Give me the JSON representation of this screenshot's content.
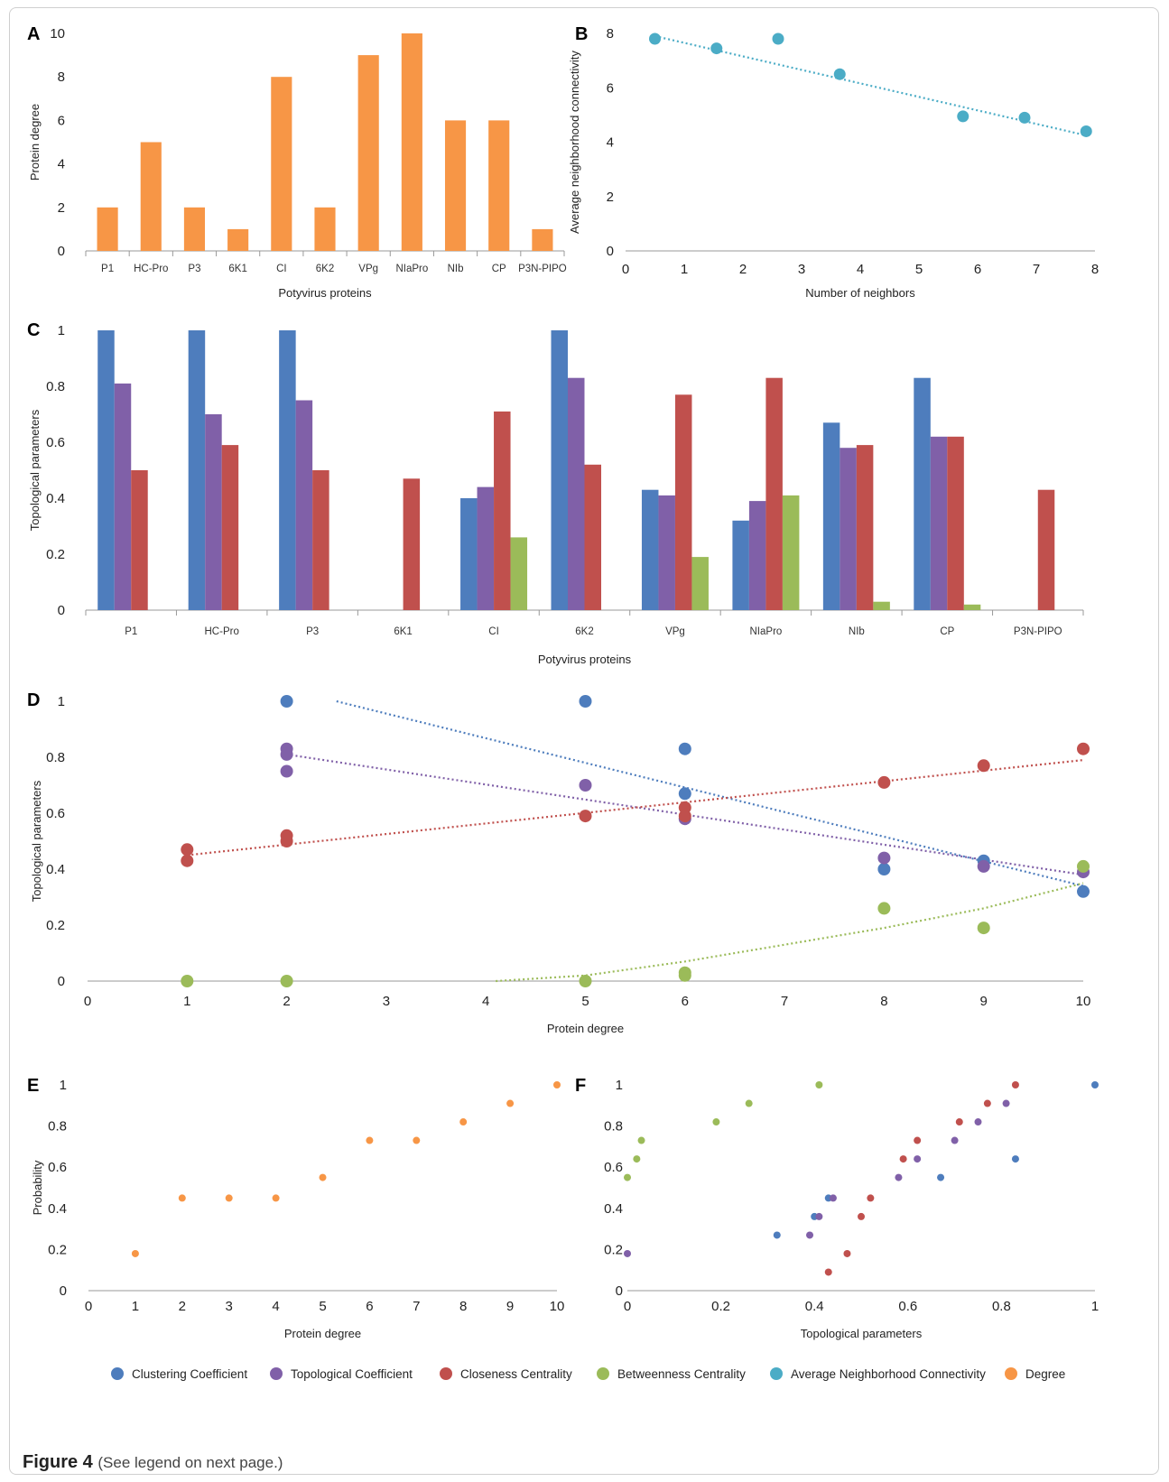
{
  "figure": {
    "caption_label": "Figure 4",
    "caption_text": "(See legend on next page.)"
  },
  "legend": {
    "items": [
      {
        "label": "Clustering Coefficient",
        "color": "#4e7dbd"
      },
      {
        "label": "Topological Coefficient",
        "color": "#8060a8"
      },
      {
        "label": "Closeness Centrality",
        "color": "#c0504d"
      },
      {
        "label": "Betweenness Centrality",
        "color": "#9bbb59"
      },
      {
        "label": "Average Neighborhood Connectivity",
        "color": "#4bacc6"
      },
      {
        "label": "Degree",
        "color": "#f79646"
      }
    ]
  },
  "chart_data": [
    {
      "panel": "A",
      "type": "bar",
      "categories": [
        "P1",
        "HC-Pro",
        "P3",
        "6K1",
        "CI",
        "6K2",
        "VPg",
        "NIaPro",
        "NIb",
        "CP",
        "P3N-PIPO"
      ],
      "series": [
        {
          "name": "Degree",
          "values": [
            2,
            5,
            2,
            1,
            8,
            2,
            9,
            10,
            6,
            6,
            1
          ],
          "color": "#f79646"
        }
      ],
      "xlabel": "Potyvirus proteins",
      "ylabel": "Protein degree",
      "ylim": [
        0,
        10
      ],
      "yticks": [
        "0",
        "2",
        "4",
        "6",
        "8",
        "10"
      ]
    },
    {
      "panel": "B",
      "type": "scatter",
      "series": [
        {
          "name": "Average Neighborhood Connectivity",
          "color": "#4bacc6",
          "points": [
            [
              0.5,
              7.8
            ],
            [
              1.55,
              7.45
            ],
            [
              2.6,
              7.8
            ],
            [
              3.65,
              6.5
            ],
            [
              5.75,
              4.95
            ],
            [
              6.8,
              4.9
            ],
            [
              7.85,
              4.4
            ]
          ]
        }
      ],
      "trendline": {
        "type": "linear",
        "from": [
          0.5,
          7.9
        ],
        "to": [
          7.85,
          4.25
        ]
      },
      "xlabel": "Number of neighbors",
      "ylabel": "Average neighborhood connectivity",
      "xlim": [
        0,
        8
      ],
      "ylim": [
        0,
        8
      ],
      "xticks": [
        "0",
        "1",
        "2",
        "3",
        "4",
        "5",
        "6",
        "7",
        "8"
      ],
      "yticks": [
        "0",
        "2",
        "4",
        "6",
        "8"
      ]
    },
    {
      "panel": "C",
      "type": "bar",
      "categories": [
        "P1",
        "HC-Pro",
        "P3",
        "6K1",
        "CI",
        "6K2",
        "VPg",
        "NIaPro",
        "NIb",
        "CP",
        "P3N-PIPO"
      ],
      "series": [
        {
          "name": "Clustering Coefficient",
          "color": "#4e7dbd",
          "values": [
            1,
            1,
            1,
            0,
            0.4,
            1,
            0.43,
            0.32,
            0.67,
            0.83,
            0
          ]
        },
        {
          "name": "Topological Coefficient",
          "color": "#8060a8",
          "values": [
            0.81,
            0.7,
            0.75,
            0,
            0.44,
            0.83,
            0.41,
            0.39,
            0.58,
            0.62,
            0
          ]
        },
        {
          "name": "Closeness Centrality",
          "color": "#c0504d",
          "values": [
            0.5,
            0.59,
            0.5,
            0.47,
            0.71,
            0.52,
            0.77,
            0.83,
            0.59,
            0.62,
            0.43
          ]
        },
        {
          "name": "Betweenness Centrality",
          "color": "#9bbb59",
          "values": [
            0,
            0,
            0,
            0,
            0.26,
            0,
            0.19,
            0.41,
            0.03,
            0.02,
            0
          ]
        }
      ],
      "xlabel": "Potyvirus proteins",
      "ylabel": "Topological parameters",
      "ylim": [
        0,
        1
      ],
      "yticks": [
        "0",
        "0.2",
        "0.4",
        "0.6",
        "0.8",
        "1"
      ]
    },
    {
      "panel": "D",
      "type": "scatter",
      "series": [
        {
          "name": "Clustering Coefficient",
          "color": "#4e7dbd",
          "points": [
            [
              2,
              1
            ],
            [
              5,
              1
            ],
            [
              6,
              0.83
            ],
            [
              6,
              0.67
            ],
            [
              8,
              0.4
            ],
            [
              9,
              0.43
            ],
            [
              10,
              0.32
            ]
          ]
        },
        {
          "name": "Topological Coefficient",
          "color": "#8060a8",
          "points": [
            [
              2,
              0.83
            ],
            [
              2,
              0.81
            ],
            [
              2,
              0.75
            ],
            [
              5,
              0.7
            ],
            [
              6,
              0.58
            ],
            [
              8,
              0.44
            ],
            [
              9,
              0.41
            ],
            [
              10,
              0.39
            ]
          ]
        },
        {
          "name": "Closeness Centrality",
          "color": "#c0504d",
          "points": [
            [
              1,
              0.47
            ],
            [
              1,
              0.43
            ],
            [
              2,
              0.52
            ],
            [
              2,
              0.5
            ],
            [
              5,
              0.59
            ],
            [
              6,
              0.62
            ],
            [
              6,
              0.59
            ],
            [
              8,
              0.71
            ],
            [
              9,
              0.77
            ],
            [
              10,
              0.83
            ]
          ]
        },
        {
          "name": "Betweenness Centrality",
          "color": "#9bbb59",
          "points": [
            [
              1,
              0
            ],
            [
              2,
              0
            ],
            [
              5,
              0
            ],
            [
              6,
              0.03
            ],
            [
              6,
              0.02
            ],
            [
              8,
              0.26
            ],
            [
              9,
              0.19
            ],
            [
              10,
              0.41
            ]
          ]
        }
      ],
      "trendlines": [
        {
          "color": "#4e7dbd",
          "pts": [
            [
              2.5,
              1.0
            ],
            [
              10,
              0.34
            ]
          ]
        },
        {
          "color": "#8060a8",
          "pts": [
            [
              2,
              0.81
            ],
            [
              10,
              0.38
            ]
          ]
        },
        {
          "color": "#c0504d",
          "pts": [
            [
              1,
              0.45
            ],
            [
              10,
              0.79
            ]
          ]
        },
        {
          "color": "#9bbb59",
          "pts": [
            [
              4.1,
              0
            ],
            [
              5,
              0.02
            ],
            [
              6,
              0.07
            ],
            [
              7,
              0.13
            ],
            [
              8,
              0.19
            ],
            [
              9,
              0.26
            ],
            [
              10,
              0.35
            ]
          ]
        }
      ],
      "xlabel": "Protein degree",
      "ylabel": "Topological parameters",
      "xlim": [
        0,
        10
      ],
      "ylim": [
        0,
        1
      ],
      "xticks": [
        "0",
        "1",
        "2",
        "3",
        "4",
        "5",
        "6",
        "7",
        "8",
        "9",
        "10"
      ],
      "yticks": [
        "0",
        "0.2",
        "0.4",
        "0.6",
        "0.8",
        "1"
      ]
    },
    {
      "panel": "E",
      "type": "scatter",
      "series": [
        {
          "name": "Degree",
          "color": "#f79646",
          "points": [
            [
              1,
              0.18
            ],
            [
              2,
              0.45
            ],
            [
              3,
              0.45
            ],
            [
              4,
              0.45
            ],
            [
              5,
              0.55
            ],
            [
              6,
              0.73
            ],
            [
              7,
              0.73
            ],
            [
              8,
              0.82
            ],
            [
              9,
              0.91
            ],
            [
              10,
              1
            ]
          ]
        }
      ],
      "xlabel": "Protein degree",
      "ylabel": "Probability",
      "xlim": [
        0,
        10
      ],
      "ylim": [
        0,
        1
      ],
      "xticks": [
        "0",
        "1",
        "2",
        "3",
        "4",
        "5",
        "6",
        "7",
        "8",
        "9",
        "10"
      ],
      "yticks": [
        "0",
        "0.2",
        "0.4",
        "0.6",
        "0.8",
        "1"
      ]
    },
    {
      "panel": "F",
      "type": "scatter",
      "series": [
        {
          "name": "Clustering Coefficient",
          "color": "#4e7dbd",
          "points": [
            [
              0.32,
              0.27
            ],
            [
              0.4,
              0.36
            ],
            [
              0.43,
              0.45
            ],
            [
              0.67,
              0.55
            ],
            [
              0.83,
              0.64
            ],
            [
              1,
              1
            ]
          ]
        },
        {
          "name": "Topological Coefficient",
          "color": "#8060a8",
          "points": [
            [
              0,
              0.18
            ],
            [
              0.39,
              0.27
            ],
            [
              0.41,
              0.36
            ],
            [
              0.44,
              0.45
            ],
            [
              0.58,
              0.55
            ],
            [
              0.62,
              0.64
            ],
            [
              0.7,
              0.73
            ],
            [
              0.75,
              0.82
            ],
            [
              0.81,
              0.91
            ]
          ]
        },
        {
          "name": "Closeness Centrality",
          "color": "#c0504d",
          "points": [
            [
              0.43,
              0.09
            ],
            [
              0.47,
              0.18
            ],
            [
              0.5,
              0.36
            ],
            [
              0.52,
              0.45
            ],
            [
              0.59,
              0.64
            ],
            [
              0.62,
              0.73
            ],
            [
              0.71,
              0.82
            ],
            [
              0.77,
              0.91
            ],
            [
              0.83,
              1
            ]
          ]
        },
        {
          "name": "Betweenness Centrality",
          "color": "#9bbb59",
          "points": [
            [
              0,
              0.55
            ],
            [
              0.02,
              0.64
            ],
            [
              0.03,
              0.73
            ],
            [
              0.19,
              0.82
            ],
            [
              0.26,
              0.91
            ],
            [
              0.41,
              1
            ]
          ]
        }
      ],
      "xlabel": "Topological parameters",
      "ylabel": "",
      "xlim": [
        0,
        1
      ],
      "ylim": [
        0,
        1
      ],
      "xticks": [
        "0",
        "0.2",
        "0.4",
        "0.6",
        "0.8",
        "1"
      ],
      "yticks": [
        "0",
        "0.2",
        "0.4",
        "0.6",
        "0.8",
        "1"
      ]
    }
  ]
}
